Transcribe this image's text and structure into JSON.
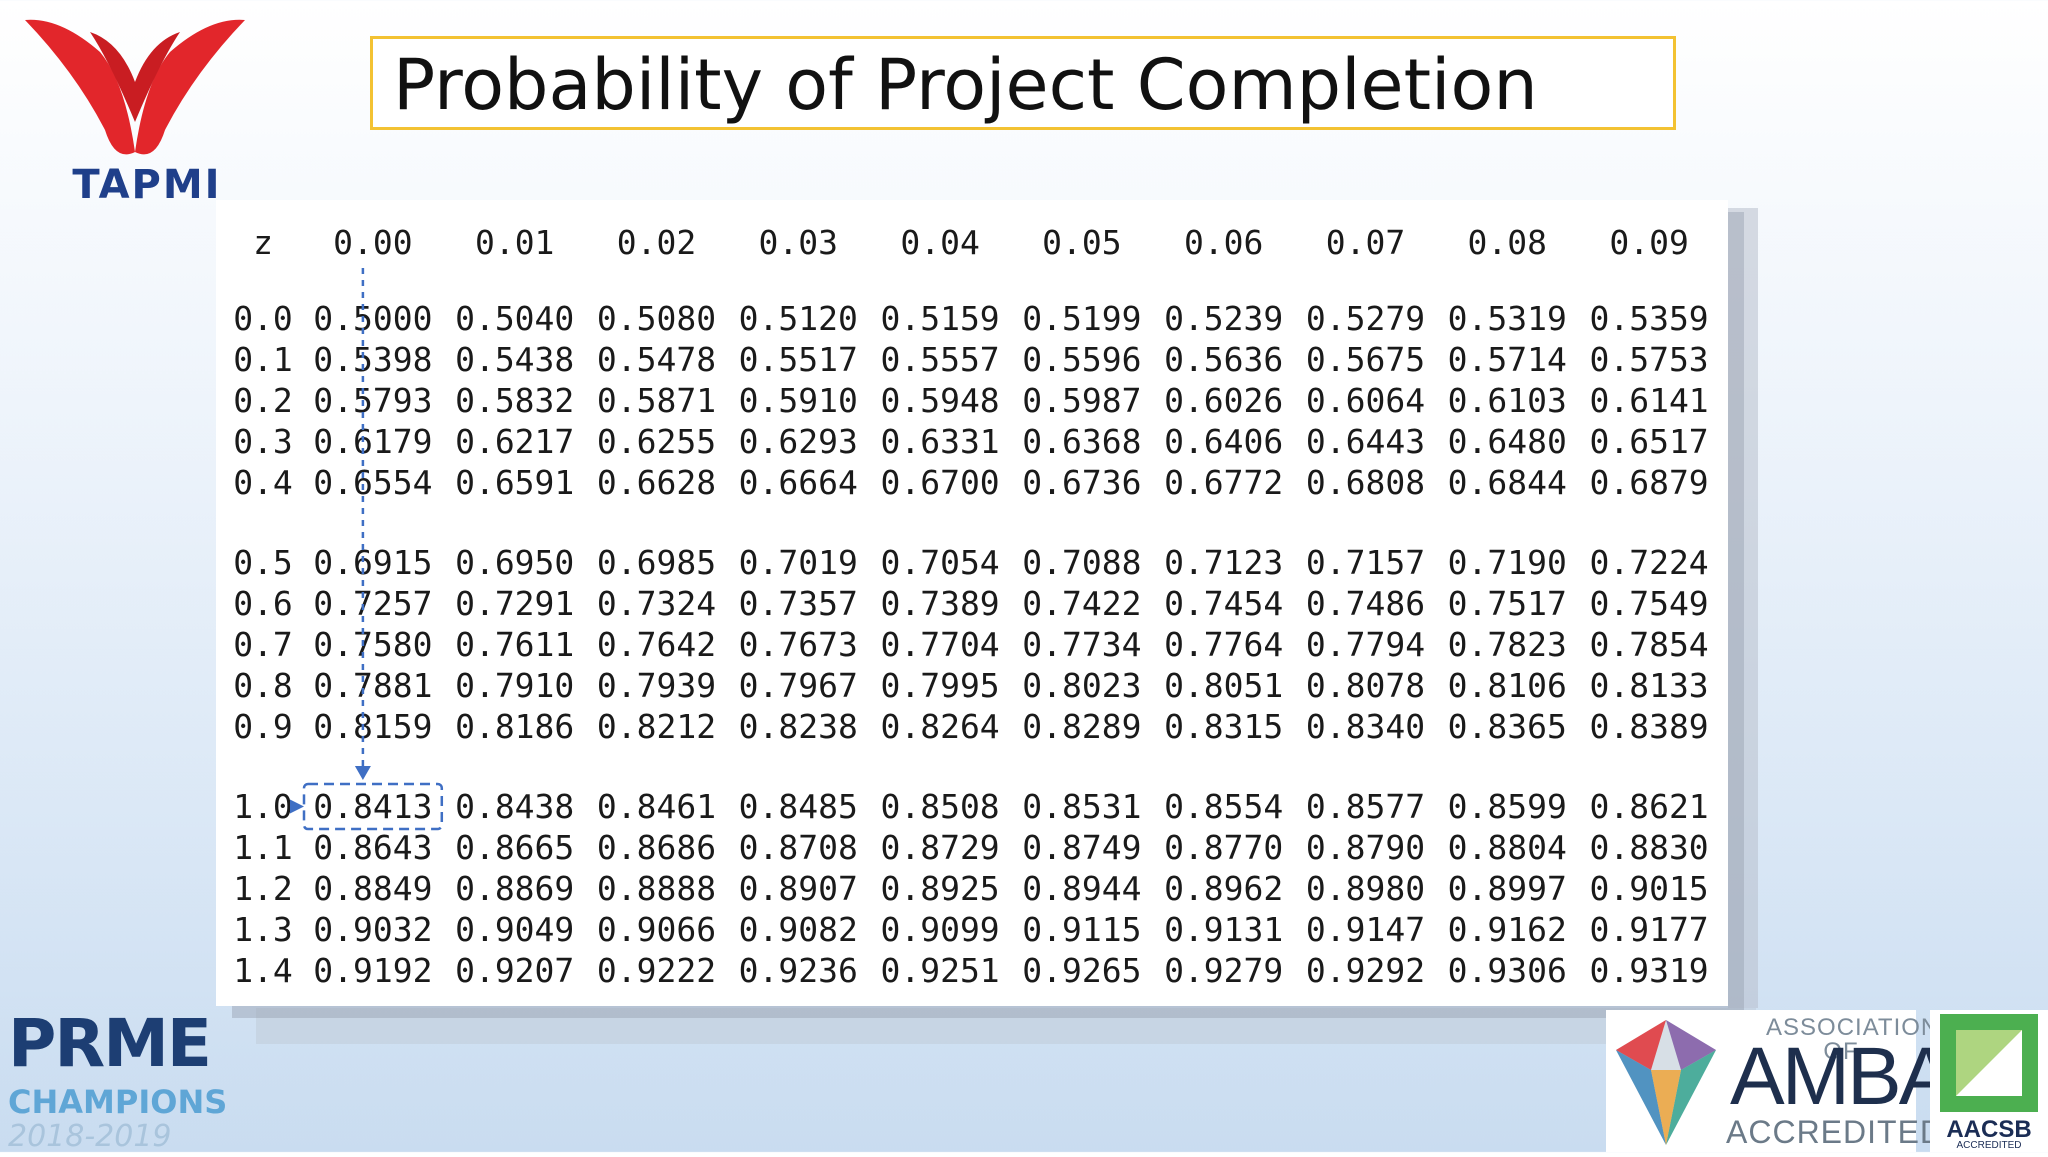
{
  "header": {
    "logo_text": "TAPMI",
    "title": "Probability of Project Completion"
  },
  "table": {
    "z_header": "z",
    "columns": [
      "0.00",
      "0.01",
      "0.02",
      "0.03",
      "0.04",
      "0.05",
      "0.06",
      "0.07",
      "0.08",
      "0.09"
    ],
    "rows": [
      {
        "z": "0.0",
        "v": [
          "0.5000",
          "0.5040",
          "0.5080",
          "0.5120",
          "0.5159",
          "0.5199",
          "0.5239",
          "0.5279",
          "0.5319",
          "0.5359"
        ]
      },
      {
        "z": "0.1",
        "v": [
          "0.5398",
          "0.5438",
          "0.5478",
          "0.5517",
          "0.5557",
          "0.5596",
          "0.5636",
          "0.5675",
          "0.5714",
          "0.5753"
        ]
      },
      {
        "z": "0.2",
        "v": [
          "0.5793",
          "0.5832",
          "0.5871",
          "0.5910",
          "0.5948",
          "0.5987",
          "0.6026",
          "0.6064",
          "0.6103",
          "0.6141"
        ]
      },
      {
        "z": "0.3",
        "v": [
          "0.6179",
          "0.6217",
          "0.6255",
          "0.6293",
          "0.6331",
          "0.6368",
          "0.6406",
          "0.6443",
          "0.6480",
          "0.6517"
        ]
      },
      {
        "z": "0.4",
        "v": [
          "0.6554",
          "0.6591",
          "0.6628",
          "0.6664",
          "0.6700",
          "0.6736",
          "0.6772",
          "0.6808",
          "0.6844",
          "0.6879"
        ]
      },
      {
        "z": "0.5",
        "v": [
          "0.6915",
          "0.6950",
          "0.6985",
          "0.7019",
          "0.7054",
          "0.7088",
          "0.7123",
          "0.7157",
          "0.7190",
          "0.7224"
        ]
      },
      {
        "z": "0.6",
        "v": [
          "0.7257",
          "0.7291",
          "0.7324",
          "0.7357",
          "0.7389",
          "0.7422",
          "0.7454",
          "0.7486",
          "0.7517",
          "0.7549"
        ]
      },
      {
        "z": "0.7",
        "v": [
          "0.7580",
          "0.7611",
          "0.7642",
          "0.7673",
          "0.7704",
          "0.7734",
          "0.7764",
          "0.7794",
          "0.7823",
          "0.7854"
        ]
      },
      {
        "z": "0.8",
        "v": [
          "0.7881",
          "0.7910",
          "0.7939",
          "0.7967",
          "0.7995",
          "0.8023",
          "0.8051",
          "0.8078",
          "0.8106",
          "0.8133"
        ]
      },
      {
        "z": "0.9",
        "v": [
          "0.8159",
          "0.8186",
          "0.8212",
          "0.8238",
          "0.8264",
          "0.8289",
          "0.8315",
          "0.8340",
          "0.8365",
          "0.8389"
        ]
      },
      {
        "z": "1.0",
        "v": [
          "0.8413",
          "0.8438",
          "0.8461",
          "0.8485",
          "0.8508",
          "0.8531",
          "0.8554",
          "0.8577",
          "0.8599",
          "0.8621"
        ]
      },
      {
        "z": "1.1",
        "v": [
          "0.8643",
          "0.8665",
          "0.8686",
          "0.8708",
          "0.8729",
          "0.8749",
          "0.8770",
          "0.8790",
          "0.8804",
          "0.8830"
        ]
      },
      {
        "z": "1.2",
        "v": [
          "0.8849",
          "0.8869",
          "0.8888",
          "0.8907",
          "0.8925",
          "0.8944",
          "0.8962",
          "0.8980",
          "0.8997",
          "0.9015"
        ]
      },
      {
        "z": "1.3",
        "v": [
          "0.9032",
          "0.9049",
          "0.9066",
          "0.9082",
          "0.9099",
          "0.9115",
          "0.9131",
          "0.9147",
          "0.9162",
          "0.9177"
        ]
      },
      {
        "z": "1.4",
        "v": [
          "0.9192",
          "0.9207",
          "0.9222",
          "0.9236",
          "0.9251",
          "0.9265",
          "0.9279",
          "0.9292",
          "0.9306",
          "0.9319"
        ]
      }
    ],
    "highlight": {
      "z": "1.0",
      "column": "0.00",
      "value": "0.8413"
    },
    "annotation_color": "#3f6fc4"
  },
  "footer": {
    "prme_word": "PRME",
    "prme_champions": "CHAMPIONS",
    "prme_years": "2018-2019",
    "amba_association": "ASSOCIATION OF",
    "amba_word": "AMBA",
    "amba_accredited": "ACCREDITED",
    "aacsb_word": "AACSB",
    "aacsb_sub": "ACCREDITED"
  },
  "colors": {
    "tapmi_red": "#e2262b",
    "tapmi_blue": "#1f3f8a",
    "title_border": "#f3c232"
  }
}
